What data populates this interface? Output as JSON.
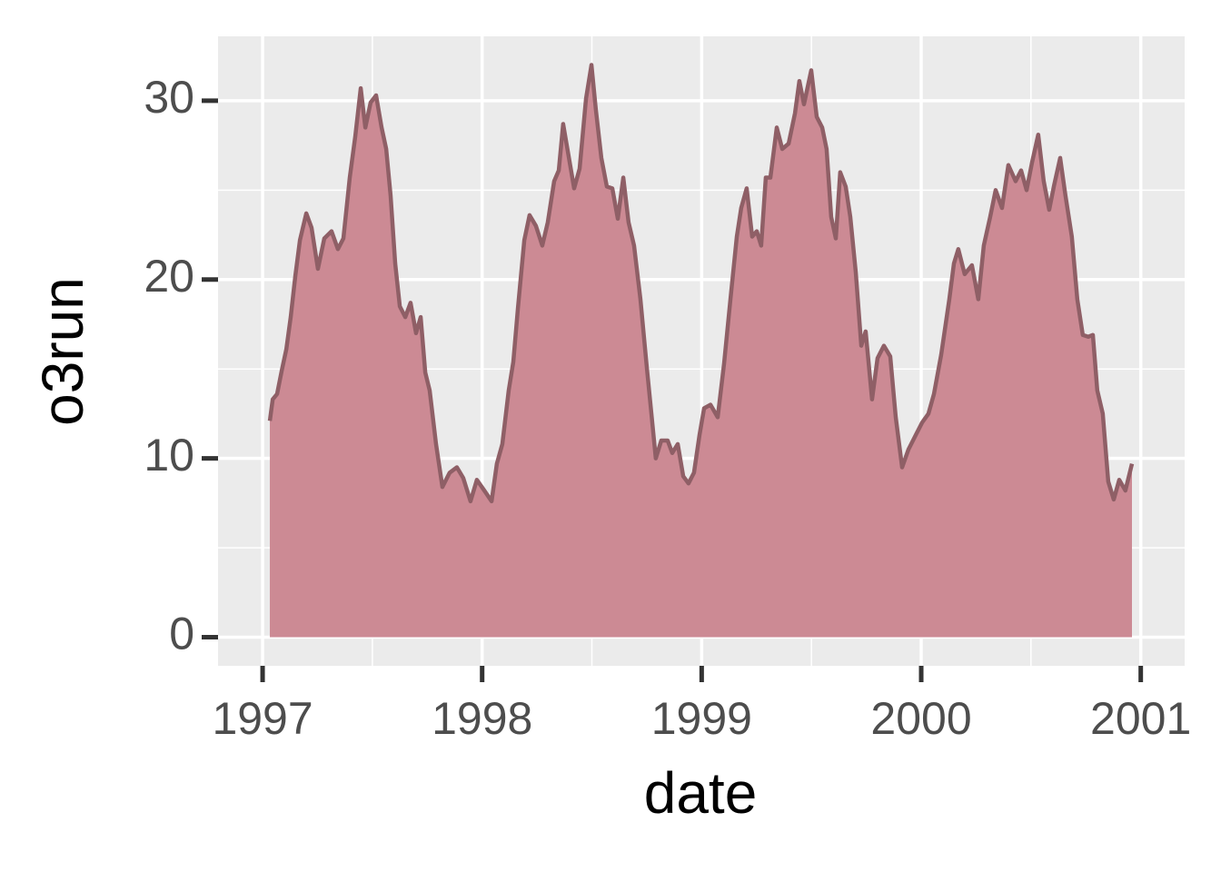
{
  "chart_data": {
    "type": "area",
    "x_label": "date",
    "y_label": "o3run",
    "x": [
      1997.033,
      1997.046,
      1997.066,
      1997.087,
      1997.108,
      1997.128,
      1997.149,
      1997.17,
      1997.199,
      1997.223,
      1997.252,
      1997.281,
      1997.314,
      1997.343,
      1997.368,
      1997.397,
      1997.422,
      1997.447,
      1997.468,
      1997.492,
      1997.517,
      1997.542,
      1997.563,
      1997.583,
      1997.604,
      1997.625,
      1997.65,
      1997.674,
      1997.699,
      1997.72,
      1997.741,
      1997.761,
      1997.79,
      1997.819,
      1997.852,
      1997.885,
      1997.914,
      1997.947,
      1997.976,
      1998.01,
      1998.043,
      1998.067,
      1998.092,
      1998.121,
      1998.142,
      1998.163,
      1998.192,
      1998.216,
      1998.245,
      1998.274,
      1998.299,
      1998.328,
      1998.349,
      1998.369,
      1998.394,
      1998.419,
      1998.444,
      1998.473,
      1998.498,
      1998.518,
      1998.543,
      1998.568,
      1998.593,
      1998.618,
      1998.643,
      1998.667,
      1998.692,
      1998.721,
      1998.75,
      1998.771,
      1998.791,
      1998.816,
      1998.845,
      1998.866,
      1998.891,
      1998.916,
      1998.94,
      1998.965,
      1998.99,
      1999.011,
      1999.04,
      1999.073,
      1999.102,
      1999.131,
      1999.16,
      1999.18,
      1999.205,
      1999.23,
      1999.251,
      1999.271,
      1999.292,
      1999.313,
      1999.342,
      1999.367,
      1999.396,
      1999.425,
      1999.445,
      1999.466,
      1999.499,
      1999.524,
      1999.549,
      1999.569,
      1999.59,
      1999.611,
      1999.631,
      1999.656,
      1999.677,
      1999.702,
      1999.727,
      1999.747,
      1999.776,
      1999.801,
      1999.83,
      1999.859,
      1999.884,
      1999.913,
      1999.942,
      1999.975,
      2000.004,
      2000.033,
      2000.058,
      2000.091,
      2000.128,
      2000.149,
      2000.169,
      2000.198,
      2000.231,
      2000.26,
      2000.285,
      2000.314,
      2000.339,
      2000.368,
      2000.397,
      2000.43,
      2000.455,
      2000.48,
      2000.504,
      2000.533,
      2000.558,
      2000.583,
      2000.604,
      2000.633,
      2000.657,
      2000.686,
      2000.711,
      2000.736,
      2000.761,
      2000.782,
      2000.802,
      2000.827,
      2000.852,
      2000.877,
      2000.902,
      2000.93,
      2000.96
    ],
    "values": [
      12.1,
      13.3,
      13.6,
      14.9,
      16.1,
      17.9,
      20.2,
      22.2,
      23.7,
      22.9,
      20.6,
      22.3,
      22.7,
      21.7,
      22.3,
      25.7,
      28.0,
      30.7,
      28.5,
      29.9,
      30.3,
      28.5,
      27.3,
      24.7,
      20.9,
      18.5,
      17.9,
      18.7,
      17.0,
      17.9,
      14.8,
      13.8,
      10.8,
      8.4,
      9.2,
      9.5,
      8.9,
      7.6,
      8.8,
      8.2,
      7.6,
      9.7,
      10.8,
      13.8,
      15.4,
      18.4,
      22.2,
      23.6,
      23.0,
      21.9,
      23.2,
      25.5,
      26.1,
      28.7,
      26.9,
      25.1,
      26.2,
      30.1,
      32.0,
      29.5,
      26.8,
      25.2,
      25.1,
      23.4,
      25.7,
      23.2,
      21.9,
      18.9,
      15.1,
      12.5,
      10.0,
      11.0,
      11.0,
      10.3,
      10.8,
      9.0,
      8.6,
      9.2,
      11.3,
      12.8,
      13.0,
      12.3,
      15.3,
      18.9,
      22.4,
      24.0,
      25.1,
      22.4,
      22.7,
      21.9,
      25.7,
      25.7,
      28.5,
      27.3,
      27.6,
      29.3,
      31.1,
      29.8,
      31.7,
      29.1,
      28.5,
      27.3,
      23.5,
      22.3,
      26.0,
      25.2,
      23.5,
      20.4,
      16.3,
      17.1,
      13.3,
      15.6,
      16.3,
      15.7,
      12.3,
      9.5,
      10.5,
      11.3,
      12.0,
      12.5,
      13.6,
      15.8,
      18.9,
      20.9,
      21.7,
      20.3,
      20.8,
      18.9,
      21.9,
      23.5,
      25.0,
      24.0,
      26.4,
      25.5,
      26.1,
      25.0,
      26.5,
      28.1,
      25.5,
      23.9,
      25.2,
      26.8,
      24.7,
      22.4,
      18.9,
      16.9,
      16.8,
      16.9,
      13.8,
      12.5,
      8.7,
      7.7,
      8.8,
      8.2,
      9.7
    ],
    "color": "#cc8a94",
    "line_color": "#8f5f66",
    "xlim": [
      1996.797,
      2001.2
    ],
    "xticks": [
      1997,
      1998,
      1999,
      2000,
      2001
    ],
    "ylim": [
      -1.6,
      33.6
    ],
    "yticks": [
      0,
      10,
      20,
      30
    ],
    "grid": true,
    "minor_grid": true,
    "panel_color": "#ebebeb"
  }
}
